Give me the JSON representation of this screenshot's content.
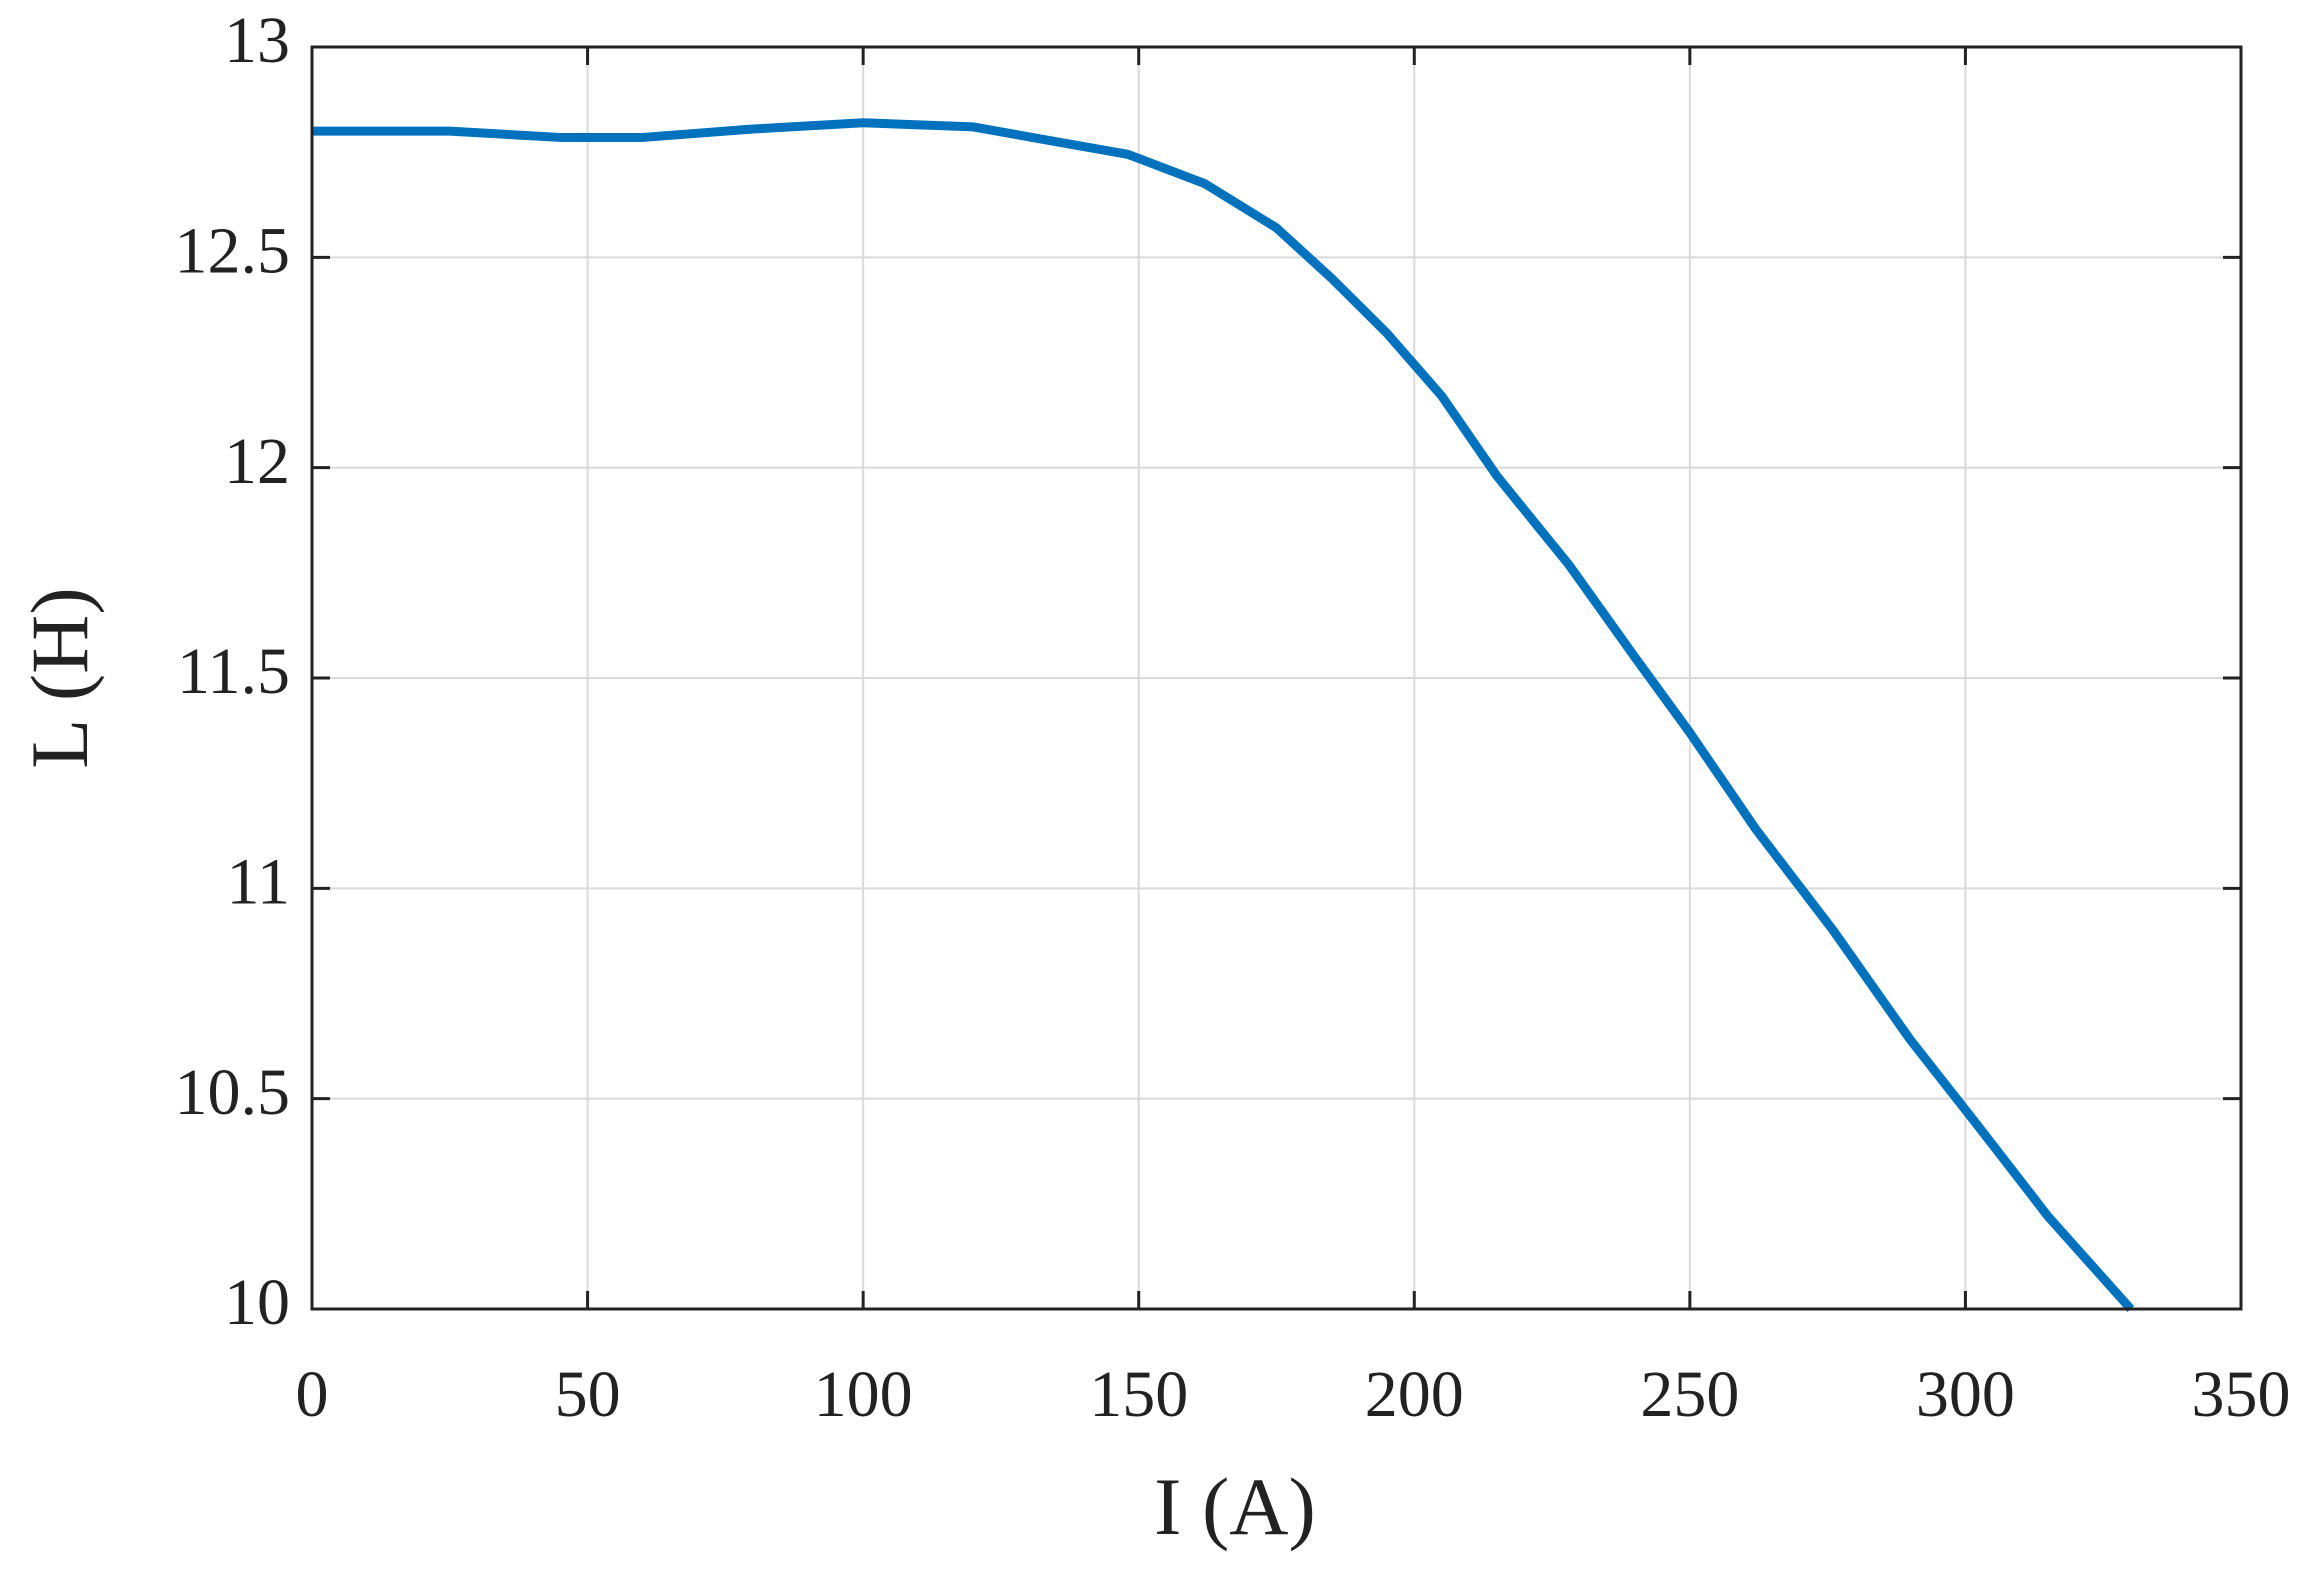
{
  "chart_data": {
    "type": "line",
    "xlabel": "I (A)",
    "ylabel": "L (H)",
    "x": [
      0,
      25,
      45,
      60,
      80,
      100,
      120,
      135,
      148,
      162,
      175,
      185,
      195,
      205,
      215,
      228,
      240,
      250,
      262,
      276,
      290,
      302,
      315,
      330
    ],
    "series": [
      {
        "name": "L",
        "color": "#0072bd",
        "values": [
          12.8,
          12.8,
          12.785,
          12.785,
          12.805,
          12.82,
          12.81,
          12.775,
          12.745,
          12.675,
          12.57,
          12.45,
          12.32,
          12.17,
          11.98,
          11.77,
          11.55,
          11.37,
          11.14,
          10.9,
          10.64,
          10.44,
          10.22,
          10.0
        ]
      }
    ],
    "xlim": [
      0,
      350
    ],
    "xticks": [
      0,
      50,
      100,
      150,
      200,
      250,
      300,
      350
    ],
    "ylim": [
      10,
      13
    ],
    "yticks": [
      10,
      10.5,
      11,
      11.5,
      12,
      12.5,
      13
    ],
    "grid": true
  }
}
